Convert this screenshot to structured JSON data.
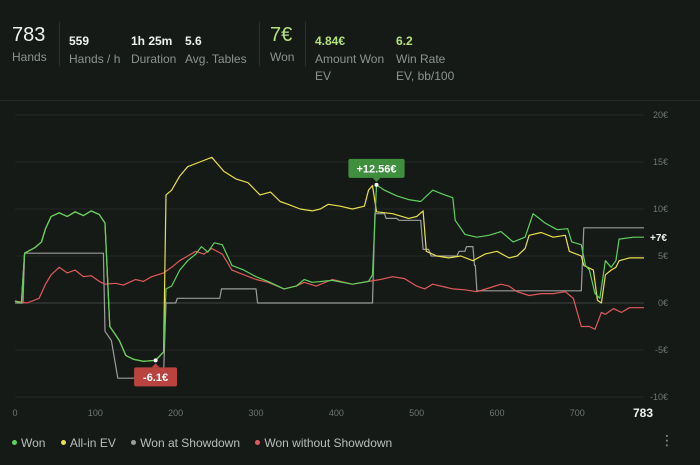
{
  "stats": {
    "hands": {
      "value": "783",
      "label": "Hands"
    },
    "hands_per_hour": {
      "value": "559",
      "label": "Hands / h"
    },
    "duration": {
      "value": "1h 25m",
      "label": "Duration"
    },
    "avg_tables": {
      "value": "5.6",
      "label": "Avg. Tables"
    },
    "won": {
      "value": "7€",
      "label": "Won"
    },
    "amount_won_ev": {
      "value": "4.84€",
      "label": "Amount Won EV"
    },
    "win_rate_ev": {
      "value": "6.2",
      "label": "Win Rate EV, bb/100"
    }
  },
  "chart_data": {
    "type": "line",
    "xlim": [
      0,
      783
    ],
    "ylim": [
      -10,
      20
    ],
    "x_ticks": [
      "0",
      "100",
      "200",
      "300",
      "400",
      "500",
      "600",
      "700"
    ],
    "x_end_label": "783",
    "y_ticks": [
      "20€",
      "15€",
      "10€",
      "5€",
      "0€",
      "-5€",
      "-10€"
    ],
    "grid": "horizontal",
    "legend_position": "bottom-left",
    "end_label": "+7€",
    "callouts": [
      {
        "text": "+12.56€",
        "x": 450,
        "y": 12.56,
        "color": "#3f8f3f"
      },
      {
        "text": "-6.1€",
        "x": 175,
        "y": -6.1,
        "color": "#b8433f"
      }
    ],
    "series": [
      {
        "name": "Won",
        "color": "#5fd15f",
        "points": [
          [
            0,
            0.2
          ],
          [
            8,
            0
          ],
          [
            12,
            5.3
          ],
          [
            25,
            5.9
          ],
          [
            33,
            6.5
          ],
          [
            38,
            7.9
          ],
          [
            45,
            9.2
          ],
          [
            55,
            9.6
          ],
          [
            65,
            9.2
          ],
          [
            75,
            9.7
          ],
          [
            85,
            9.3
          ],
          [
            95,
            9.8
          ],
          [
            105,
            9.4
          ],
          [
            112,
            8.5
          ],
          [
            118,
            -2.5
          ],
          [
            122,
            -3.0
          ],
          [
            130,
            -4.0
          ],
          [
            138,
            -5.6
          ],
          [
            148,
            -6.0
          ],
          [
            160,
            -6.2
          ],
          [
            175,
            -6.1
          ],
          [
            185,
            -5.2
          ],
          [
            188,
            1.5
          ],
          [
            195,
            1.8
          ],
          [
            205,
            3.5
          ],
          [
            215,
            4.5
          ],
          [
            225,
            5.2
          ],
          [
            232,
            6.0
          ],
          [
            240,
            5.4
          ],
          [
            248,
            6.4
          ],
          [
            258,
            6.2
          ],
          [
            270,
            4.0
          ],
          [
            285,
            3.5
          ],
          [
            300,
            2.8
          ],
          [
            315,
            2.3
          ],
          [
            335,
            1.5
          ],
          [
            350,
            1.8
          ],
          [
            360,
            2.5
          ],
          [
            370,
            2.2
          ],
          [
            395,
            2.4
          ],
          [
            420,
            2.0
          ],
          [
            440,
            2.3
          ],
          [
            445,
            3.0
          ],
          [
            450,
            12.56
          ],
          [
            460,
            12.0
          ],
          [
            475,
            11.4
          ],
          [
            490,
            11.0
          ],
          [
            505,
            10.8
          ],
          [
            520,
            12.0
          ],
          [
            535,
            11.5
          ],
          [
            545,
            11.2
          ],
          [
            548,
            8.8
          ],
          [
            560,
            7.3
          ],
          [
            575,
            7.0
          ],
          [
            590,
            7.2
          ],
          [
            605,
            7.6
          ],
          [
            620,
            6.5
          ],
          [
            635,
            7.0
          ],
          [
            645,
            9.5
          ],
          [
            660,
            8.5
          ],
          [
            675,
            7.8
          ],
          [
            688,
            7.9
          ],
          [
            693,
            6.5
          ],
          [
            705,
            6.2
          ],
          [
            710,
            4.0
          ],
          [
            715,
            3.5
          ],
          [
            722,
            1.0
          ],
          [
            728,
            0.5
          ],
          [
            735,
            4.5
          ],
          [
            742,
            3.8
          ],
          [
            748,
            4.5
          ],
          [
            752,
            6.8
          ],
          [
            770,
            7.0
          ],
          [
            783,
            7.0
          ]
        ]
      },
      {
        "name": "All-in EV",
        "color": "#e8e04a",
        "points": [
          [
            0,
            0.2
          ],
          [
            8,
            0
          ],
          [
            12,
            5.3
          ],
          [
            25,
            5.9
          ],
          [
            33,
            6.5
          ],
          [
            38,
            7.9
          ],
          [
            45,
            9.2
          ],
          [
            55,
            9.6
          ],
          [
            65,
            9.2
          ],
          [
            75,
            9.7
          ],
          [
            85,
            9.3
          ],
          [
            95,
            9.8
          ],
          [
            105,
            9.4
          ],
          [
            112,
            8.5
          ],
          [
            118,
            -2.5
          ],
          [
            122,
            -3.0
          ],
          [
            130,
            -4.0
          ],
          [
            138,
            -5.6
          ],
          [
            148,
            -6.0
          ],
          [
            160,
            -6.2
          ],
          [
            175,
            -6.1
          ],
          [
            185,
            -5.2
          ],
          [
            188,
            11.5
          ],
          [
            195,
            12.0
          ],
          [
            205,
            13.5
          ],
          [
            215,
            14.5
          ],
          [
            230,
            15.0
          ],
          [
            245,
            15.5
          ],
          [
            260,
            14.0
          ],
          [
            275,
            13.2
          ],
          [
            290,
            12.8
          ],
          [
            305,
            11.5
          ],
          [
            318,
            11.8
          ],
          [
            330,
            10.8
          ],
          [
            340,
            10.5
          ],
          [
            355,
            10.0
          ],
          [
            370,
            9.8
          ],
          [
            380,
            10.0
          ],
          [
            390,
            10.5
          ],
          [
            405,
            10.3
          ],
          [
            420,
            10.0
          ],
          [
            435,
            10.3
          ],
          [
            440,
            12.0
          ],
          [
            445,
            12.5
          ],
          [
            450,
            9.7
          ],
          [
            470,
            9.5
          ],
          [
            490,
            9.0
          ],
          [
            500,
            9.2
          ],
          [
            508,
            9.8
          ],
          [
            512,
            5.5
          ],
          [
            525,
            5.0
          ],
          [
            540,
            4.8
          ],
          [
            555,
            5.0
          ],
          [
            570,
            4.5
          ],
          [
            585,
            5.2
          ],
          [
            600,
            5.5
          ],
          [
            615,
            4.8
          ],
          [
            625,
            5.0
          ],
          [
            635,
            5.8
          ],
          [
            640,
            7.2
          ],
          [
            655,
            7.5
          ],
          [
            670,
            7.0
          ],
          [
            685,
            7.2
          ],
          [
            690,
            5.5
          ],
          [
            705,
            5.0
          ],
          [
            708,
            4.0
          ],
          [
            720,
            3.5
          ],
          [
            725,
            0.3
          ],
          [
            730,
            0.0
          ],
          [
            735,
            3.0
          ],
          [
            742,
            3.5
          ],
          [
            748,
            3.8
          ],
          [
            752,
            4.5
          ],
          [
            765,
            4.8
          ],
          [
            783,
            4.8
          ]
        ]
      },
      {
        "name": "Won at Showdown",
        "color": "#9c9c9c",
        "points": [
          [
            0,
            0
          ],
          [
            10,
            0
          ],
          [
            12,
            5.3
          ],
          [
            110,
            5.3
          ],
          [
            112,
            -3.0
          ],
          [
            120,
            -4.0
          ],
          [
            128,
            -8.0
          ],
          [
            182,
            -8.0
          ],
          [
            185,
            -7.5
          ],
          [
            188,
            0
          ],
          [
            200,
            0
          ],
          [
            202,
            0.5
          ],
          [
            255,
            0.5
          ],
          [
            257,
            1.5
          ],
          [
            300,
            1.5
          ],
          [
            302,
            0
          ],
          [
            445,
            0
          ],
          [
            448,
            9.5
          ],
          [
            460,
            9.5
          ],
          [
            462,
            9.0
          ],
          [
            475,
            9.0
          ],
          [
            478,
            8.8
          ],
          [
            505,
            8.8
          ],
          [
            508,
            5.7
          ],
          [
            515,
            5.7
          ],
          [
            518,
            5.0
          ],
          [
            550,
            5.0
          ],
          [
            553,
            5.5
          ],
          [
            560,
            5.5
          ],
          [
            562,
            6.0
          ],
          [
            570,
            6.0
          ],
          [
            572,
            4.0
          ],
          [
            573,
            4.0
          ],
          [
            575,
            1.3
          ],
          [
            705,
            1.3
          ],
          [
            708,
            8.0
          ],
          [
            783,
            8.0
          ]
        ]
      },
      {
        "name": "Won without Showdown",
        "color": "#e05a5a",
        "points": [
          [
            0,
            0.2
          ],
          [
            15,
            0
          ],
          [
            30,
            0.5
          ],
          [
            38,
            2.0
          ],
          [
            45,
            3.0
          ],
          [
            55,
            3.8
          ],
          [
            65,
            3.2
          ],
          [
            75,
            3.5
          ],
          [
            85,
            2.8
          ],
          [
            95,
            2.9
          ],
          [
            105,
            2.3
          ],
          [
            112,
            2.0
          ],
          [
            125,
            2.1
          ],
          [
            135,
            1.9
          ],
          [
            150,
            2.5
          ],
          [
            160,
            2.3
          ],
          [
            170,
            2.8
          ],
          [
            185,
            3.2
          ],
          [
            195,
            3.8
          ],
          [
            205,
            4.5
          ],
          [
            215,
            5.0
          ],
          [
            225,
            5.5
          ],
          [
            235,
            5.2
          ],
          [
            245,
            5.8
          ],
          [
            258,
            5.2
          ],
          [
            270,
            3.5
          ],
          [
            285,
            3.0
          ],
          [
            300,
            2.5
          ],
          [
            315,
            2.2
          ],
          [
            335,
            1.5
          ],
          [
            350,
            1.8
          ],
          [
            360,
            2.2
          ],
          [
            375,
            1.8
          ],
          [
            395,
            2.5
          ],
          [
            420,
            2.0
          ],
          [
            440,
            2.3
          ],
          [
            455,
            2.5
          ],
          [
            470,
            2.8
          ],
          [
            485,
            2.6
          ],
          [
            500,
            1.8
          ],
          [
            510,
            1.5
          ],
          [
            520,
            2.0
          ],
          [
            535,
            1.7
          ],
          [
            545,
            1.5
          ],
          [
            560,
            1.4
          ],
          [
            575,
            1.2
          ],
          [
            590,
            1.6
          ],
          [
            605,
            2.0
          ],
          [
            615,
            1.8
          ],
          [
            625,
            1.2
          ],
          [
            640,
            0.8
          ],
          [
            655,
            1.0
          ],
          [
            670,
            1.0
          ],
          [
            685,
            1.2
          ],
          [
            695,
            0.5
          ],
          [
            700,
            -1.0
          ],
          [
            705,
            -2.5
          ],
          [
            715,
            -2.5
          ],
          [
            722,
            -2.8
          ],
          [
            730,
            -1.0
          ],
          [
            735,
            -1.2
          ],
          [
            745,
            -0.6
          ],
          [
            755,
            -1.0
          ],
          [
            765,
            -0.5
          ],
          [
            783,
            -0.5
          ]
        ]
      }
    ]
  },
  "menu_icon": "more-vertical-icon"
}
